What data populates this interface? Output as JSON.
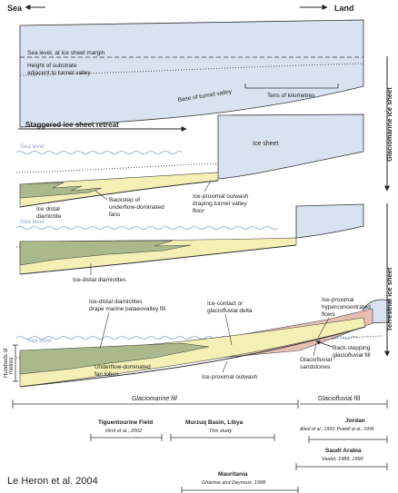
{
  "header": {
    "sea": "Sea",
    "land": "Land"
  },
  "panel1": {
    "sea_level": "Sea level, at ice sheet margin",
    "substrate_l1": "Height of substrate",
    "substrate_l2": "adjacent to tunnel valley",
    "base": "Base of tunnel valley",
    "scale": "Tens of kilometres"
  },
  "panel2": {
    "title": "Staggered ice sheet retreat",
    "sea_level": "Sea level",
    "ice_sheet": "Ice sheet",
    "distal_l1": "Ice distal",
    "distal_l2": "diamictite",
    "backstep_l1": "Backstep of",
    "backstep_l2": "underflow-dominated",
    "backstep_l3": "fans",
    "proximal_l1": "Ice-proximal outwash",
    "proximal_l2": "draping tunnel valley",
    "proximal_l3": "floor"
  },
  "panel3": {
    "sea_level": "Sea level",
    "distal": "Ice-distal diamictites"
  },
  "panel4": {
    "sea_level": "Sea level",
    "distal_l1": "Ice-distal diamictites",
    "distal_l2": "drape marine palaeovalley fill",
    "contact_l1": "Ice-contact or",
    "contact_l2": "glaciofluvial delta",
    "hyper_l1": "Ice-proximal",
    "hyper_l2": "hyperconcentrated",
    "hyper_l3": "flows",
    "fan_l1": "Underflow-dominated",
    "fan_l2": "fan lobes",
    "outwash": "Ice-proximal outwash",
    "gsand_l1": "Glaciofluvial",
    "gsand_l2": "sandstones",
    "back_l1": "Back-stepping",
    "back_l2": "glaciofluvial fill",
    "vscale_l1": "Hundreds of",
    "vscale_l2": "metres"
  },
  "side": {
    "glaciomarine": "Glaciomarine ice sheet",
    "terrestrial": "Terrestrial ice sheet"
  },
  "bottom": {
    "glaciomarine_fill": "Glaciomarine fill",
    "glaciofluvial_fill": "Glaciofluvial fill",
    "tig_title": "Tiguentourine Field",
    "tig_ref": "Hirst et al., 2002",
    "murzuq_title": "Murzuq Basin, Libya",
    "murzuq_ref": "This study",
    "jordan_title": "Jordan",
    "jordan_ref": "Abed et al., 1993; Powell et al., 1994",
    "saudi_title": "Saudi Arabia",
    "saudi_ref": "Vaslet, 1989, 1990",
    "maur_title": "Mauritania",
    "maur_ref": "Ghienne and Deynoux, 1998"
  },
  "citation": "Le Heron et al. 2004",
  "colors": {
    "ice": "#d9e2f0",
    "distal_green": "#a9b98b",
    "fan_yellow": "#f3efb5",
    "delta_pink": "#e6bfb2",
    "sea_blue": "#8fa6c8"
  }
}
